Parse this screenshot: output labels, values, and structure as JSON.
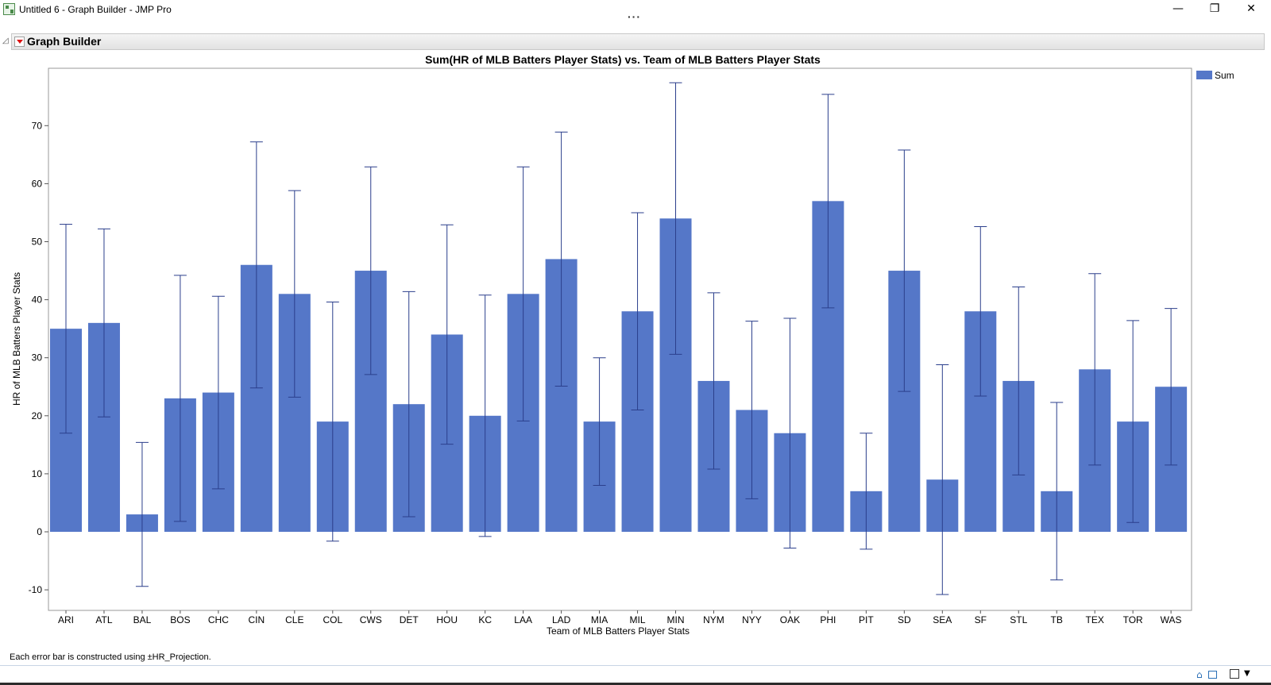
{
  "window": {
    "title": "Untitled 6 - Graph Builder - JMP Pro",
    "minimize_glyph": "—",
    "maximize_glyph": "❐",
    "close_glyph": "✕",
    "more_glyph": "···"
  },
  "outline": {
    "disclosure_glyph": "◿",
    "title": "Graph Builder"
  },
  "footnote": "Each error bar is constructed using ±HR_Projection.",
  "colors": {
    "bar_fill": "#5577c8",
    "bar_stroke": "#ffffff",
    "error_bar": "#2b3f8c",
    "gridline": "#000000"
  },
  "icons": [
    "app-icon",
    "red-triangle-menu-icon",
    "disclosure-icon",
    "home-icon",
    "export-icon"
  ],
  "chart_data": {
    "type": "bar",
    "title": "Sum(HR of MLB Batters Player Stats) vs. Team of MLB Batters Player Stats",
    "xlabel": "Team of MLB Batters Player Stats",
    "ylabel": "HR of MLB Batters Player Stats",
    "ylim": [
      -13,
      80
    ],
    "yticks": [
      -10,
      0,
      10,
      20,
      30,
      40,
      50,
      60,
      70
    ],
    "grid": false,
    "legend": {
      "position": "right",
      "entries": [
        "Sum"
      ]
    },
    "categories": [
      "ARI",
      "ATL",
      "BAL",
      "BOS",
      "CHC",
      "CIN",
      "CLE",
      "COL",
      "CWS",
      "DET",
      "HOU",
      "KC",
      "LAA",
      "LAD",
      "MIA",
      "MIL",
      "MIN",
      "NYM",
      "NYY",
      "OAK",
      "PHI",
      "PIT",
      "SD",
      "SEA",
      "SF",
      "STL",
      "TB",
      "TEX",
      "TOR",
      "WAS"
    ],
    "series": [
      {
        "name": "Sum",
        "values": [
          35,
          36,
          3,
          23,
          24,
          46,
          41,
          19,
          45,
          22,
          34,
          20,
          41,
          47,
          19,
          38,
          54,
          26,
          21,
          17,
          57,
          7,
          45,
          9,
          38,
          26,
          7,
          28,
          19,
          25
        ],
        "error_low": [
          17,
          19.8,
          -9.4,
          1.8,
          7.4,
          24.8,
          23.2,
          -1.6,
          27.1,
          2.6,
          15.1,
          -0.8,
          19.1,
          25.1,
          8,
          21,
          30.6,
          10.8,
          5.7,
          -2.8,
          38.6,
          -3,
          24.2,
          -10.8,
          23.4,
          9.8,
          -8.3,
          11.5,
          1.6,
          11.5
        ],
        "error_high": [
          53,
          52.2,
          15.4,
          44.2,
          40.6,
          67.2,
          58.8,
          39.6,
          62.9,
          41.4,
          52.9,
          40.8,
          62.9,
          68.9,
          30,
          55,
          77.4,
          41.2,
          36.3,
          36.8,
          75.4,
          17,
          65.8,
          28.8,
          52.6,
          42.2,
          22.3,
          44.5,
          36.4,
          38.5
        ]
      }
    ]
  }
}
